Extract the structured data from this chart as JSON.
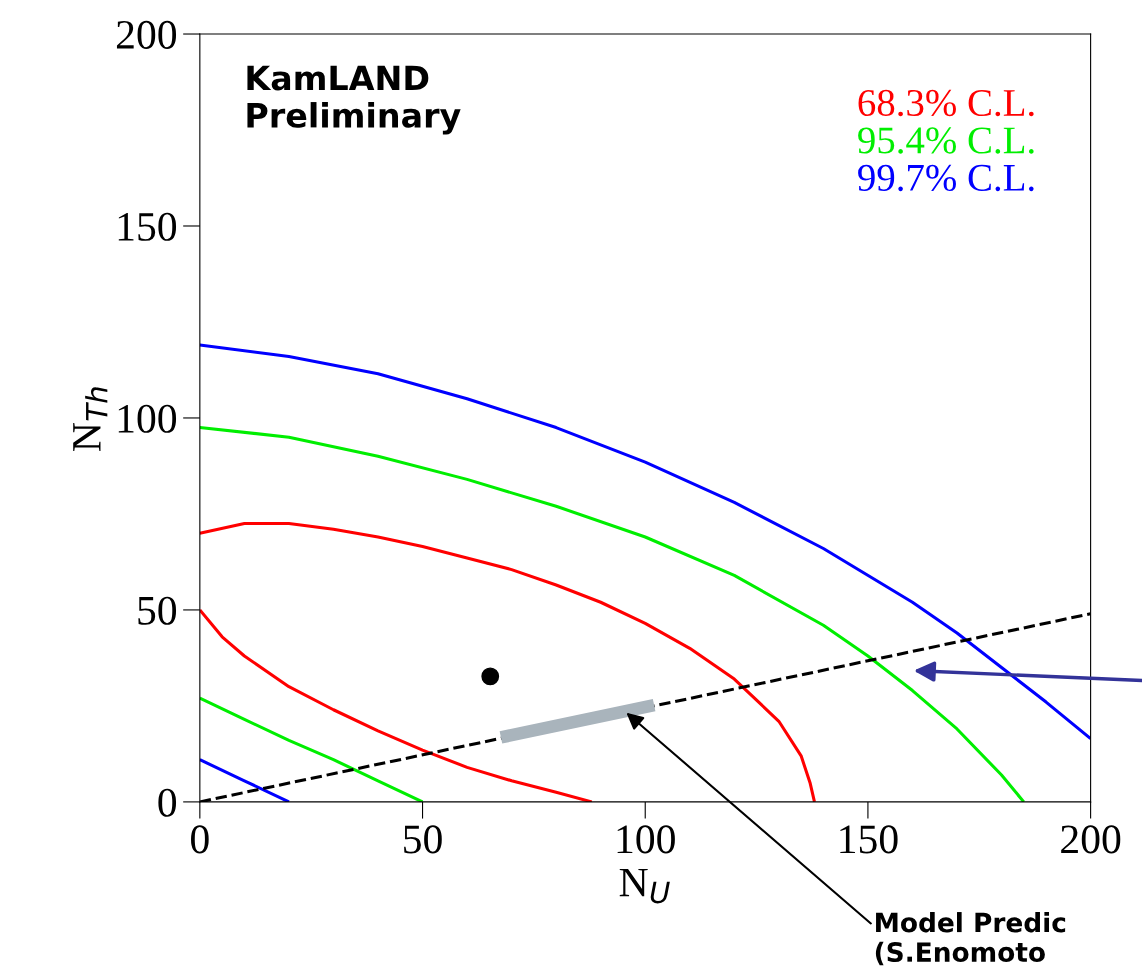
{
  "chart_data": {
    "type": "line",
    "xlabel": "N$_{U}$",
    "ylabel": "N$_{Th}$",
    "xlim": [
      0,
      200
    ],
    "ylim": [
      0,
      200
    ],
    "xticks": [
      0,
      50,
      100,
      150,
      200
    ],
    "yticks": [
      0,
      50,
      100,
      150,
      200
    ],
    "grid": false,
    "legend": "top right",
    "line_style": "solid",
    "series": [
      {
        "name": "68.3% C.L.",
        "color": "#ff0000",
        "x": [
          0,
          10,
          20,
          30,
          40,
          50,
          60,
          70,
          80,
          90,
          100,
          110,
          120,
          130,
          135,
          137,
          138
        ],
        "values": [
          70,
          72.5,
          72.5,
          71,
          69,
          66.5,
          63.5,
          60.5,
          56.5,
          52,
          46.5,
          40,
          32,
          21,
          12,
          5,
          0
        ]
      },
      {
        "color": "#ff0000",
        "x": [
          0,
          5,
          10,
          20,
          30,
          40,
          50,
          60,
          70,
          80,
          88
        ],
        "values": [
          50,
          43,
          38,
          30,
          24,
          18.5,
          13.5,
          9,
          5.5,
          2.5,
          0
        ]
      },
      {
        "name": "95.4% C.L.",
        "color": "#00ee00",
        "x": [
          0,
          20,
          40,
          60,
          80,
          100,
          120,
          140,
          150,
          160,
          170,
          180,
          185
        ],
        "values": [
          97.5,
          95,
          90,
          84,
          77,
          69,
          59,
          46,
          38,
          29,
          19,
          7,
          0
        ]
      },
      {
        "color": "#00ee00",
        "x": [
          0,
          10,
          20,
          30,
          40,
          50
        ],
        "values": [
          27,
          21.5,
          16,
          11,
          5.5,
          0
        ]
      },
      {
        "name": "99.7% C.L.",
        "color": "#0000ff",
        "x": [
          0,
          20,
          40,
          60,
          80,
          100,
          120,
          140,
          160,
          170,
          180,
          190,
          200
        ],
        "values": [
          119,
          116,
          111.5,
          105,
          97.5,
          88.5,
          78,
          66,
          52,
          44,
          35,
          26,
          16.5
        ]
      },
      {
        "color": "#0000ff",
        "x": [
          0,
          10,
          20
        ],
        "values": [
          11,
          5.5,
          0
        ]
      },
      {
        "color": "#000000",
        "line_style": "dashed",
        "x": [
          0,
          200
        ],
        "values": [
          0,
          49
        ]
      },
      {
        "color": "#a9b4bc",
        "x": [
          67.6,
          102
        ],
        "values": [
          16.8,
          25.2
        ]
      },
      {
        "type": "scatter",
        "marker": "circle",
        "color": "#000000",
        "x": [
          65.2
        ],
        "values": [
          32.7
        ]
      }
    ],
    "annotations": [
      "KamLAND\nPreliminary",
      {
        "text": "Model Predic\n(S.Enomoto",
        "x": 95.3,
        "y": 23.7
      }
    ]
  }
}
